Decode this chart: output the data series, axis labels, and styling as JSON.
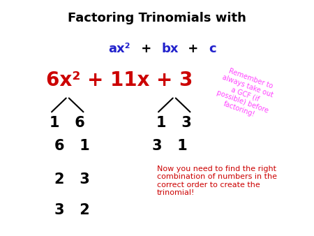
{
  "title_line1": "Factoring Trinomials with",
  "title_line2_segments": [
    {
      "text": "ax²",
      "color": "#2222cc"
    },
    {
      "text": " + ",
      "color": "#000000"
    },
    {
      "text": "bx",
      "color": "#2222cc"
    },
    {
      "text": " + ",
      "color": "#000000"
    },
    {
      "text": "c",
      "color": "#2222cc"
    }
  ],
  "expression": "6x² + 11x + 3",
  "expression_color": "#cc0000",
  "gcf_note": "Remember to\nalways take out\na GCF (if\npossible) before\nfactoring!",
  "gcf_note_color": "#ff44ff",
  "now_text": "Now you need to find the right\ncombination of numbers in the\ncorrect order to create the\ntrinomial!",
  "now_text_color": "#cc0000",
  "bg_color": "#ffffff",
  "title1_fontsize": 13,
  "title2_fontsize": 13,
  "expr_fontsize": 20,
  "number_fontsize": 15,
  "now_fontsize": 8,
  "gcf_fontsize": 7
}
